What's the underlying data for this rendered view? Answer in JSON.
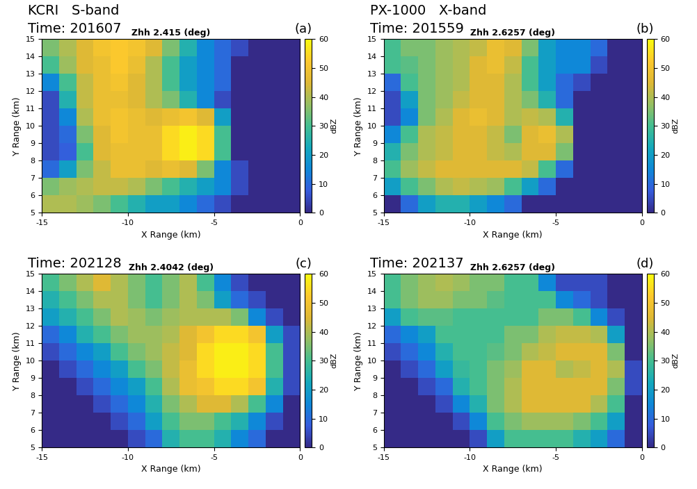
{
  "chart_data": [
    {
      "type": "heatmap",
      "panel": "(a)",
      "header": [
        "KCRI   S-band",
        "Time: 201607"
      ],
      "title": "Zhh 2.415 (deg)",
      "x_label": "X Range (km)",
      "y_label": "Y Range (km)",
      "xlim": [
        -15,
        0
      ],
      "ylim": [
        5,
        15
      ],
      "xticks": [
        -15,
        -10,
        -5,
        0
      ],
      "yticks": [
        5,
        6,
        7,
        8,
        9,
        10,
        11,
        12,
        13,
        14,
        15
      ],
      "x_edges": [
        -15,
        -14,
        -13,
        -12,
        -11,
        -10,
        -9,
        -8,
        -7,
        -6,
        -5,
        -4,
        -3,
        -2,
        -1,
        0
      ],
      "y_edges": [
        15,
        14,
        13,
        12,
        11,
        10,
        9,
        8,
        7,
        6,
        5
      ],
      "cells": [
        [
          35,
          40,
          45,
          50,
          52,
          50,
          45,
          35,
          25,
          15,
          10,
          5,
          0,
          0,
          0
        ],
        [
          30,
          38,
          45,
          48,
          52,
          48,
          40,
          30,
          20,
          15,
          10,
          0,
          0,
          0,
          0
        ],
        [
          15,
          30,
          42,
          48,
          50,
          45,
          40,
          30,
          20,
          15,
          10,
          0,
          0,
          0,
          0
        ],
        [
          5,
          25,
          42,
          48,
          48,
          45,
          40,
          35,
          25,
          15,
          5,
          0,
          0,
          0,
          0
        ],
        [
          5,
          15,
          40,
          48,
          50,
          48,
          45,
          48,
          50,
          45,
          20,
          0,
          0,
          0,
          0
        ],
        [
          5,
          10,
          35,
          45,
          50,
          48,
          48,
          55,
          58,
          55,
          30,
          0,
          0,
          0,
          0
        ],
        [
          5,
          8,
          30,
          45,
          48,
          48,
          48,
          55,
          58,
          55,
          30,
          0,
          0,
          0,
          0
        ],
        [
          10,
          20,
          35,
          42,
          48,
          48,
          45,
          48,
          45,
          35,
          15,
          5,
          0,
          0,
          0
        ],
        [
          35,
          38,
          40,
          42,
          42,
          40,
          35,
          30,
          25,
          20,
          15,
          5,
          0,
          0,
          0
        ],
        [
          40,
          40,
          38,
          35,
          30,
          25,
          20,
          20,
          15,
          10,
          5,
          0,
          0,
          0,
          0
        ]
      ],
      "colorbar": {
        "range": [
          0,
          60
        ],
        "ticks": [
          0,
          10,
          20,
          30,
          40,
          50,
          60
        ],
        "label": "dBZ"
      }
    },
    {
      "type": "heatmap",
      "panel": "(b)",
      "header": [
        "PX-1000   X-band",
        "Time: 201559"
      ],
      "title": "Zhh 2.6257 (deg)",
      "x_label": "X Range (km)",
      "y_label": "Y Range (km)",
      "xlim": [
        -15,
        0
      ],
      "ylim": [
        5,
        15
      ],
      "xticks": [
        -15,
        -10,
        -5,
        0
      ],
      "yticks": [
        5,
        6,
        7,
        8,
        9,
        10,
        11,
        12,
        13,
        14,
        15
      ],
      "x_edges": [
        -15,
        -14,
        -13,
        -12,
        -11,
        -10,
        -9,
        -8,
        -7,
        -6,
        -5,
        -4,
        -3,
        -2,
        -1,
        0
      ],
      "y_edges": [
        15,
        14,
        13,
        12,
        11,
        10,
        9,
        8,
        7,
        6,
        5
      ],
      "cells": [
        [
          30,
          35,
          35,
          38,
          40,
          42,
          48,
          45,
          35,
          20,
          15,
          15,
          10,
          0,
          0
        ],
        [
          30,
          32,
          35,
          38,
          40,
          45,
          48,
          42,
          30,
          20,
          15,
          15,
          5,
          0,
          0
        ],
        [
          10,
          30,
          35,
          38,
          40,
          45,
          45,
          40,
          30,
          20,
          10,
          5,
          0,
          0,
          0
        ],
        [
          5,
          20,
          35,
          38,
          42,
          45,
          45,
          40,
          35,
          25,
          10,
          0,
          0,
          0,
          0
        ],
        [
          5,
          15,
          35,
          40,
          45,
          48,
          45,
          40,
          42,
          40,
          25,
          0,
          0,
          0,
          0
        ],
        [
          15,
          30,
          40,
          42,
          45,
          45,
          42,
          35,
          45,
          48,
          40,
          0,
          0,
          0,
          0
        ],
        [
          25,
          35,
          40,
          42,
          45,
          45,
          42,
          40,
          45,
          45,
          35,
          0,
          0,
          0,
          0
        ],
        [
          30,
          38,
          42,
          45,
          45,
          45,
          45,
          45,
          42,
          30,
          10,
          0,
          0,
          0,
          0
        ],
        [
          20,
          30,
          35,
          40,
          42,
          40,
          38,
          30,
          20,
          10,
          0,
          0,
          0,
          0,
          0
        ],
        [
          0,
          10,
          20,
          25,
          25,
          20,
          15,
          10,
          0,
          0,
          0,
          0,
          0,
          0,
          0
        ]
      ],
      "colorbar": {
        "range": [
          0,
          60
        ],
        "ticks": [
          0,
          10,
          20,
          30,
          40,
          50,
          60
        ],
        "label": "dBZ"
      }
    },
    {
      "type": "heatmap",
      "panel": "(c)",
      "header": [
        "Time: 202128"
      ],
      "title": "Zhh 2.4042 (deg)",
      "x_label": "X Range (km)",
      "y_label": "Y Range (km)",
      "xlim": [
        -15,
        0
      ],
      "ylim": [
        5,
        15
      ],
      "xticks": [
        -15,
        -10,
        -5,
        0
      ],
      "yticks": [
        5,
        6,
        7,
        8,
        9,
        10,
        11,
        12,
        13,
        14,
        15
      ],
      "x_edges": [
        -15,
        -14,
        -13,
        -12,
        -11,
        -10,
        -9,
        -8,
        -7,
        -6,
        -5,
        -4,
        -3,
        -2,
        -1,
        0
      ],
      "y_edges": [
        15,
        14,
        13,
        12,
        11,
        10,
        9,
        8,
        7,
        6,
        5
      ],
      "cells": [
        [
          30,
          35,
          40,
          45,
          40,
          35,
          30,
          35,
          40,
          30,
          15,
          5,
          0,
          0,
          0
        ],
        [
          25,
          30,
          35,
          40,
          40,
          35,
          30,
          35,
          40,
          35,
          20,
          10,
          5,
          0,
          0
        ],
        [
          20,
          25,
          30,
          35,
          40,
          38,
          35,
          38,
          40,
          40,
          40,
          35,
          15,
          5,
          0
        ],
        [
          10,
          15,
          25,
          30,
          35,
          38,
          38,
          40,
          45,
          50,
          55,
          55,
          50,
          20,
          5
        ],
        [
          5,
          10,
          15,
          20,
          30,
          35,
          38,
          42,
          45,
          55,
          58,
          58,
          55,
          30,
          5
        ],
        [
          0,
          5,
          10,
          15,
          20,
          30,
          35,
          42,
          48,
          55,
          58,
          58,
          55,
          30,
          5
        ],
        [
          0,
          0,
          5,
          10,
          15,
          20,
          30,
          40,
          48,
          50,
          55,
          55,
          50,
          25,
          5
        ],
        [
          0,
          0,
          0,
          5,
          10,
          15,
          25,
          35,
          40,
          45,
          45,
          40,
          30,
          15,
          0
        ],
        [
          0,
          0,
          0,
          0,
          5,
          10,
          20,
          30,
          35,
          35,
          30,
          25,
          15,
          5,
          0
        ],
        [
          0,
          0,
          0,
          0,
          0,
          5,
          10,
          25,
          30,
          30,
          25,
          15,
          10,
          0,
          0
        ]
      ],
      "colorbar": {
        "range": [
          0,
          60
        ],
        "ticks": [
          0,
          10,
          20,
          30,
          40,
          50,
          60
        ],
        "label": "dBZ"
      }
    },
    {
      "type": "heatmap",
      "panel": "(d)",
      "header": [
        "Time: 202137"
      ],
      "title": "Zhh 2.6257 (deg)",
      "x_label": "X Range (km)",
      "y_label": "Y Range (km)",
      "xlim": [
        -15,
        0
      ],
      "ylim": [
        5,
        15
      ],
      "xticks": [
        -15,
        -10,
        -5,
        0
      ],
      "yticks": [
        5,
        6,
        7,
        8,
        9,
        10,
        11,
        12,
        13,
        14,
        15
      ],
      "x_edges": [
        -15,
        -14,
        -13,
        -12,
        -11,
        -10,
        -9,
        -8,
        -7,
        -6,
        -5,
        -4,
        -3,
        -2,
        -1,
        0
      ],
      "y_edges": [
        15,
        14,
        13,
        12,
        11,
        10,
        9,
        8,
        7,
        6,
        5
      ],
      "cells": [
        [
          30,
          35,
          38,
          40,
          38,
          35,
          35,
          30,
          30,
          15,
          5,
          5,
          5,
          0,
          0
        ],
        [
          30,
          35,
          38,
          38,
          35,
          35,
          32,
          30,
          30,
          30,
          15,
          10,
          5,
          0,
          0
        ],
        [
          20,
          30,
          32,
          32,
          30,
          30,
          30,
          30,
          30,
          35,
          35,
          30,
          15,
          5,
          0
        ],
        [
          10,
          15,
          20,
          30,
          30,
          30,
          30,
          35,
          35,
          40,
          42,
          42,
          40,
          20,
          0
        ],
        [
          5,
          10,
          15,
          25,
          30,
          30,
          32,
          35,
          40,
          42,
          45,
          45,
          45,
          35,
          0
        ],
        [
          0,
          5,
          10,
          20,
          28,
          30,
          35,
          38,
          45,
          45,
          40,
          42,
          45,
          40,
          5
        ],
        [
          0,
          0,
          5,
          10,
          25,
          30,
          35,
          40,
          45,
          45,
          45,
          45,
          45,
          35,
          5
        ],
        [
          0,
          0,
          0,
          5,
          15,
          25,
          35,
          40,
          45,
          45,
          45,
          45,
          40,
          30,
          0
        ],
        [
          0,
          0,
          0,
          0,
          5,
          15,
          30,
          35,
          38,
          38,
          38,
          35,
          30,
          20,
          0
        ],
        [
          0,
          0,
          0,
          0,
          0,
          5,
          20,
          30,
          30,
          30,
          30,
          25,
          20,
          10,
          0
        ]
      ],
      "colorbar": {
        "range": [
          0,
          60
        ],
        "ticks": [
          0,
          10,
          20,
          30,
          40,
          50,
          60
        ],
        "label": "dBZ"
      }
    }
  ]
}
